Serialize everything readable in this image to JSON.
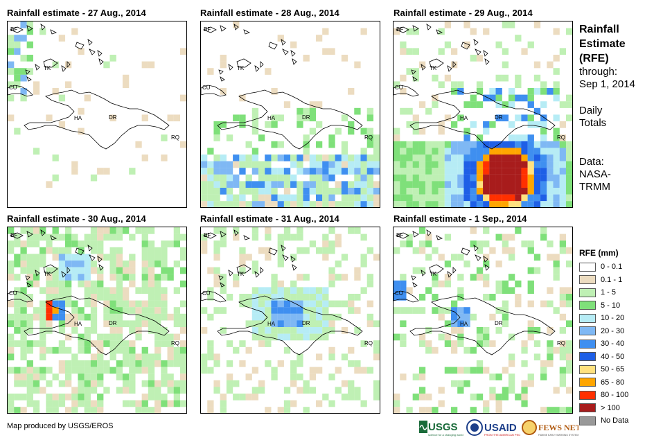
{
  "panels": [
    {
      "title": "Rainfall estimate - 27 Aug., 2014"
    },
    {
      "title": "Rainfall estimate - 28 Aug., 2014"
    },
    {
      "title": "Rainfall estimate - 29 Aug., 2014"
    },
    {
      "title": "Rainfall estimate - 30 Aug., 2014"
    },
    {
      "title": "Rainfall estimate - 31 Aug., 2014"
    },
    {
      "title": "Rainfall estimate - 1 Sep., 2014"
    }
  ],
  "map_labels": {
    "bf": "BF",
    "tk": "TK",
    "cu": "CU",
    "ha": "HA",
    "dr": "DR",
    "rq": "RQ"
  },
  "side": {
    "title_line1": "Rainfall",
    "title_line2": "Estimate",
    "title_line3": "(RFE)",
    "through": "through:",
    "date": "Sep 1, 2014",
    "daily1": "Daily",
    "daily2": "Totals",
    "data1": "Data:",
    "data2": "NASA-",
    "data3": "TRMM"
  },
  "legend": {
    "title": "RFE (mm)",
    "items": [
      {
        "label": "0 - 0.1",
        "color": "#ffffff"
      },
      {
        "label": "0.1 - 1",
        "color": "#ecdcc0"
      },
      {
        "label": "1 - 5",
        "color": "#bff0b4"
      },
      {
        "label": "5 - 10",
        "color": "#7fe07a"
      },
      {
        "label": "10 - 20",
        "color": "#b6ecf5"
      },
      {
        "label": "20 - 30",
        "color": "#7fb8f4"
      },
      {
        "label": "30 - 40",
        "color": "#3f8ff0"
      },
      {
        "label": "40 - 50",
        "color": "#1e5fe6"
      },
      {
        "label": "50 - 65",
        "color": "#ffe17f"
      },
      {
        "label": "65 - 80",
        "color": "#ffa500"
      },
      {
        "label": "80 - 100",
        "color": "#ff3000"
      },
      {
        "label": "> 100",
        "color": "#a81c1c"
      },
      {
        "label": "No Data",
        "color": "#999999"
      }
    ]
  },
  "footer": {
    "credit": "Map produced by USGS/EROS",
    "logo_usgs": "USGS",
    "logo_usaid": "USAID",
    "logo_fews": "FEWS NET"
  }
}
